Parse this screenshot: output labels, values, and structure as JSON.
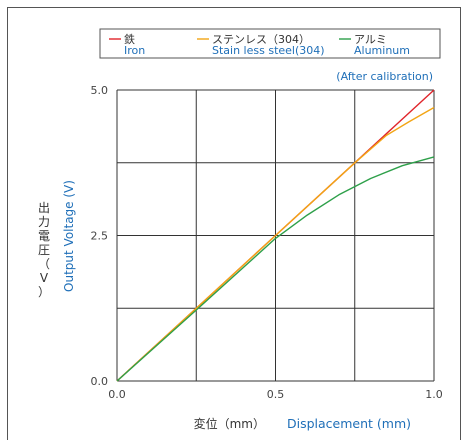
{
  "chart_data": {
    "type": "line",
    "xlabel_jp": "変位（mm）",
    "xlabel_en": "Displacement (mm)",
    "ylabel_jp": "出力電圧（V）",
    "ylabel_en": "Output Voltage (V)",
    "annotation": "(After calibration)",
    "xlim": [
      0,
      1.0
    ],
    "ylim": [
      0,
      5.0
    ],
    "x_ticks": [
      "0.0",
      "0.5",
      "1.0"
    ],
    "y_ticks": [
      "0.0",
      "2.5",
      "5.0"
    ],
    "grid": true,
    "legend_position": "top",
    "series": [
      {
        "name_jp": "鉄",
        "name_en": "Iron",
        "color": "#e0252b",
        "x": [
          0,
          0.25,
          0.5,
          0.75,
          0.85,
          1.0
        ],
        "y": [
          0,
          1.25,
          2.5,
          3.75,
          4.25,
          5.0
        ]
      },
      {
        "name_jp": "ステンレス（304）",
        "name_en": "Stain less steel(304)",
        "color": "#f2a515",
        "x": [
          0,
          0.25,
          0.5,
          0.75,
          0.85,
          0.92,
          1.0
        ],
        "y": [
          0,
          1.25,
          2.5,
          3.75,
          4.22,
          4.45,
          4.7
        ]
      },
      {
        "name_jp": "アルミ",
        "name_en": "Aluminum",
        "color": "#2ea04a",
        "x": [
          0,
          0.25,
          0.5,
          0.6,
          0.7,
          0.8,
          0.9,
          1.0
        ],
        "y": [
          0,
          1.22,
          2.45,
          2.85,
          3.2,
          3.48,
          3.7,
          3.85
        ]
      }
    ]
  }
}
